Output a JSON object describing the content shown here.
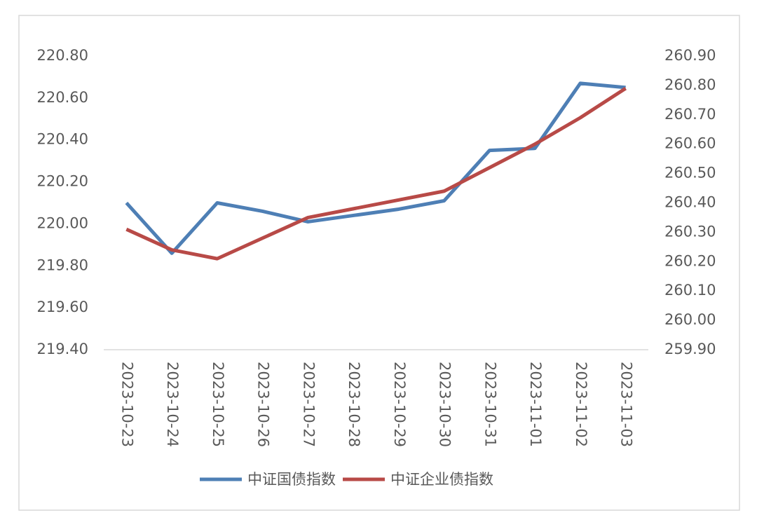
{
  "chart_data": {
    "type": "line",
    "categories": [
      "2023-10-23",
      "2023-10-24",
      "2023-10-25",
      "2023-10-26",
      "2023-10-27",
      "2023-10-28",
      "2023-10-29",
      "2023-10-30",
      "2023-10-31",
      "2023-11-01",
      "2023-11-02",
      "2023-11-03"
    ],
    "series": [
      {
        "name": "中证国债指数",
        "color": "#4e7fb5",
        "values": [
          220.1,
          219.86,
          220.1,
          220.06,
          220.01,
          220.04,
          220.07,
          220.11,
          220.35,
          220.36,
          220.67,
          220.65
        ]
      },
      {
        "name": "中证企业债指数",
        "color": "#b84a47",
        "axis": "y2",
        "values": [
          260.31,
          260.24,
          260.21,
          260.28,
          260.35,
          260.38,
          260.41,
          260.44,
          260.52,
          260.6,
          260.69,
          260.79
        ]
      }
    ],
    "ylim": [
      219.4,
      220.8
    ],
    "yticks": [
      {
        "value": 219.4,
        "label": "219.40"
      },
      {
        "value": 219.6,
        "label": "219.60"
      },
      {
        "value": 219.8,
        "label": "219.80"
      },
      {
        "value": 220,
        "label": "220.00"
      },
      {
        "value": 220.2,
        "label": "220.20"
      },
      {
        "value": 220.4,
        "label": "220.40"
      },
      {
        "value": 220.6,
        "label": "220.60"
      },
      {
        "value": 220.8,
        "label": "220.80"
      }
    ],
    "y2lim": [
      259.9,
      260.9
    ],
    "y2ticks": [
      {
        "value": 259.9,
        "label": "259.90"
      },
      {
        "value": 260,
        "label": "260.00"
      },
      {
        "value": 260.1,
        "label": "260.10"
      },
      {
        "value": 260.2,
        "label": "260.20"
      },
      {
        "value": 260.3,
        "label": "260.30"
      },
      {
        "value": 260.4,
        "label": "260.40"
      },
      {
        "value": 260.5,
        "label": "260.50"
      },
      {
        "value": 260.6,
        "label": "260.60"
      },
      {
        "value": 260.7,
        "label": "260.70"
      },
      {
        "value": 260.8,
        "label": "260.80"
      },
      {
        "value": 260.9,
        "label": "260.90"
      }
    ],
    "grid": false,
    "legend": "bottom"
  }
}
